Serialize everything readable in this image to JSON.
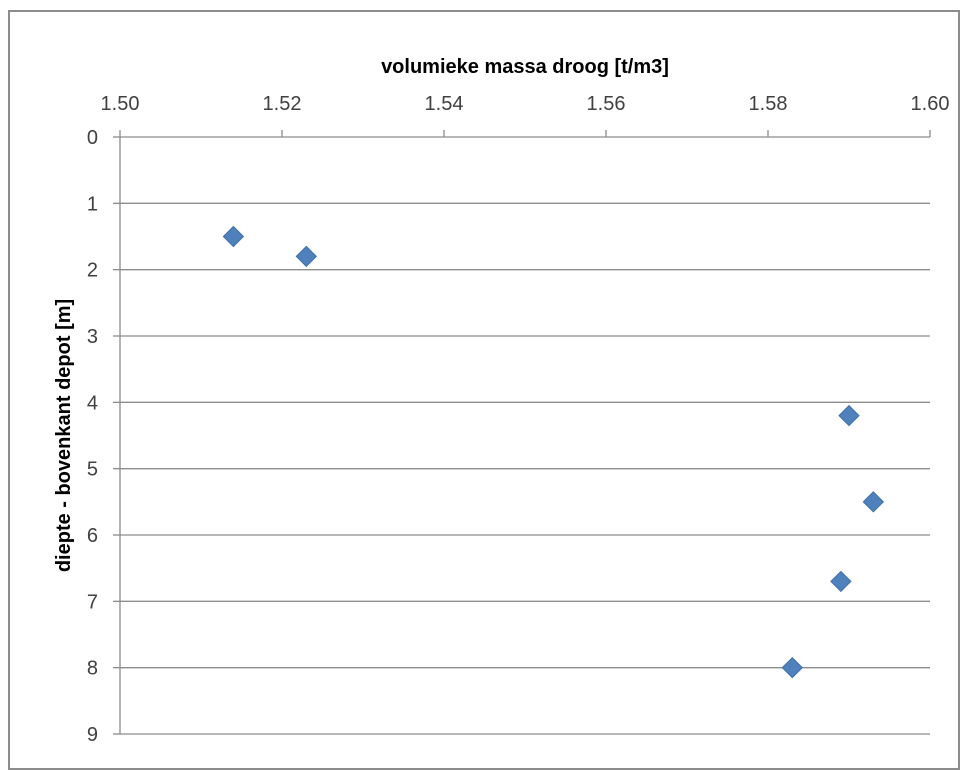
{
  "chart_data": {
    "type": "scatter",
    "xlabel": "volumieke massa droog [t/m3]",
    "ylabel": "diepte - bovenkant depot [m]",
    "x_axis_position": "top",
    "y_axis_inverted": true,
    "xlim": [
      1.5,
      1.6
    ],
    "ylim": [
      0,
      9
    ],
    "x_ticks": [
      "1.50",
      "1.52",
      "1.54",
      "1.56",
      "1.58",
      "1.60"
    ],
    "y_ticks": [
      "0",
      "1",
      "2",
      "3",
      "4",
      "5",
      "6",
      "7",
      "8",
      "9"
    ],
    "grid": "horizontal",
    "legend": "none",
    "marker": "diamond",
    "series_color": "#4f81bd",
    "series": [
      {
        "points": [
          {
            "x": 1.514,
            "y": 1.5
          },
          {
            "x": 1.523,
            "y": 1.8
          },
          {
            "x": 1.59,
            "y": 4.2
          },
          {
            "x": 1.593,
            "y": 5.5
          },
          {
            "x": 1.589,
            "y": 6.7
          },
          {
            "x": 1.583,
            "y": 8.0
          }
        ]
      }
    ]
  }
}
